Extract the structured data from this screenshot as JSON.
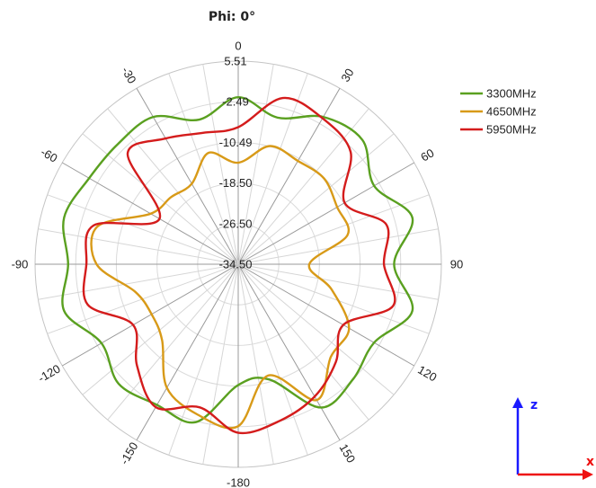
{
  "chart_data": {
    "type": "polar-line",
    "title": "Phi: 0°",
    "radial_ticks": [
      "5.51",
      "-2.49",
      "-10.49",
      "-18.50",
      "-26.50",
      "-34.50"
    ],
    "rlim": [
      -34.5,
      5.51
    ],
    "angle_ticks": [
      "0",
      "30",
      "60",
      "90",
      "120",
      "150",
      "-180",
      "-150",
      "-120",
      "-90",
      "-60",
      "-30"
    ],
    "grid": true,
    "legend": "top-right",
    "theta_deg": [
      0,
      15,
      30,
      45,
      60,
      75,
      90,
      105,
      120,
      135,
      150,
      165,
      180,
      -165,
      -150,
      -135,
      -120,
      -105,
      -90,
      -75,
      -60,
      -45,
      -30,
      -15
    ],
    "series": [
      {
        "name": "3300MHz",
        "color": "#5aa020",
        "values": [
          -1.6,
          -4.6,
          -1.0,
          0.1,
          -3.6,
          1.0,
          -3.8,
          1.0,
          -3.6,
          -2.5,
          -1.9,
          -11.0,
          -10.7,
          -2.3,
          -2.5,
          -1.2,
          -3.4,
          1.0,
          -1.0,
          1.0,
          -0.6,
          -1.0,
          -1.0,
          -5.0
        ]
      },
      {
        "name": "4650MHz",
        "color": "#d89a18",
        "values": [
          -14.5,
          -10.4,
          -11.0,
          -10.6,
          -12.0,
          -12.2,
          -20.5,
          -15.5,
          -9.3,
          -8.7,
          -3.6,
          -11.8,
          -2.6,
          -3.8,
          -6.4,
          -13.3,
          -14.8,
          -13.5,
          -6.6,
          -5.8,
          -14.6,
          -15.8,
          -16.2,
          -11.8
        ]
      },
      {
        "name": "5950MHz",
        "color": "#d41c1c",
        "values": [
          -7.5,
          -0.6,
          -1.3,
          -3.2,
          -10.3,
          -4.3,
          -5.8,
          -2.9,
          -10.6,
          -7.3,
          -4.4,
          -2.6,
          -1.3,
          -5.3,
          -2.0,
          -6.3,
          -10.6,
          -3.8,
          -4.6,
          -5.0,
          -16.6,
          -3.7,
          -5.9,
          -7.7
        ]
      }
    ]
  },
  "axis_indicator": {
    "z_label": "z",
    "x_label": "x",
    "z_color": "#1a1aff",
    "x_color": "#ee1111"
  }
}
